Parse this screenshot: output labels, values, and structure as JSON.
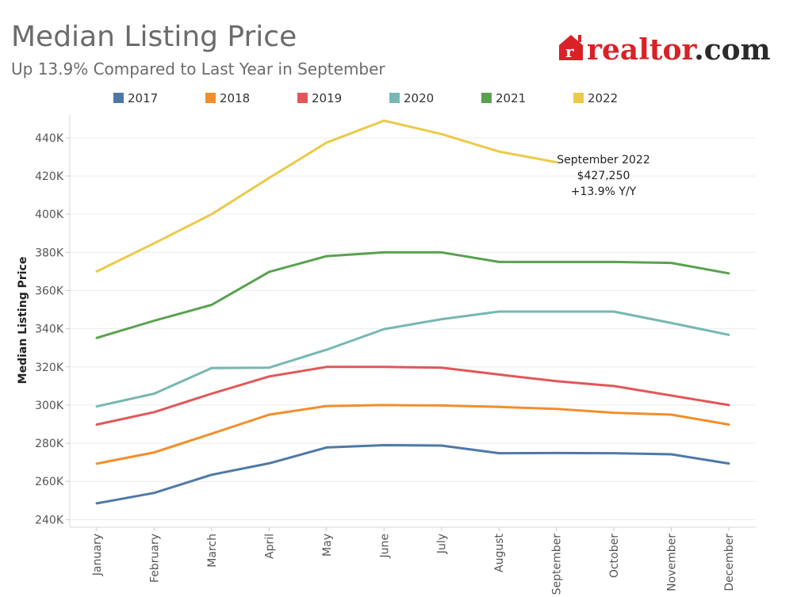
{
  "header": {
    "title": "Median Listing Price",
    "subtitle": "Up 13.9% Compared to Last Year in September"
  },
  "logo": {
    "mark_letter": "r",
    "part1": "realtor",
    "part2": ".com",
    "color": "#d92228",
    "color_dark": "#2b2b2b"
  },
  "chart_data": {
    "type": "line",
    "title": "Median Listing Price",
    "subtitle": "Up 13.9% Compared to Last Year in September",
    "xlabel": "",
    "ylabel": "Median Listing Price",
    "categories": [
      "January",
      "February",
      "March",
      "April",
      "May",
      "June",
      "July",
      "August",
      "September",
      "October",
      "November",
      "December"
    ],
    "ylim": [
      236000,
      452000
    ],
    "yticks": [
      240000,
      260000,
      280000,
      300000,
      320000,
      340000,
      360000,
      380000,
      400000,
      420000,
      440000
    ],
    "ytick_labels": [
      "240K",
      "260K",
      "280K",
      "300K",
      "320K",
      "340K",
      "360K",
      "380K",
      "400K",
      "420K",
      "440K"
    ],
    "grid": true,
    "legend_position": "top",
    "series": [
      {
        "name": "2017",
        "color": "#4e79a7",
        "values": [
          248500,
          254000,
          263500,
          269500,
          277800,
          279000,
          278800,
          274800,
          274900,
          274800,
          274200,
          269400
        ]
      },
      {
        "name": "2018",
        "color": "#f28e2b",
        "values": [
          269300,
          275200,
          285000,
          295000,
          299500,
          300000,
          299800,
          299000,
          298000,
          296000,
          295000,
          289800
        ]
      },
      {
        "name": "2019",
        "color": "#e15759",
        "values": [
          289800,
          296300,
          306000,
          315000,
          320000,
          320000,
          319600,
          316000,
          312500,
          310000,
          305000,
          300000
        ]
      },
      {
        "name": "2020",
        "color": "#76b7b2",
        "values": [
          299300,
          306000,
          319400,
          319600,
          329000,
          339800,
          345000,
          349000,
          349000,
          349000,
          343000,
          336800
        ]
      },
      {
        "name": "2021",
        "color": "#59a14f",
        "values": [
          335200,
          344200,
          352500,
          369800,
          378000,
          380000,
          380000,
          375000,
          375000,
          375000,
          374500,
          369000
        ]
      },
      {
        "name": "2022",
        "color": "#edc948",
        "values": [
          370000,
          384800,
          400000,
          419000,
          437500,
          449000,
          442000,
          432800,
          427250,
          null,
          null,
          null
        ]
      }
    ],
    "annotation": {
      "title": "September 2022",
      "value": "$427,250",
      "change": "+13.9% Y/Y"
    }
  }
}
